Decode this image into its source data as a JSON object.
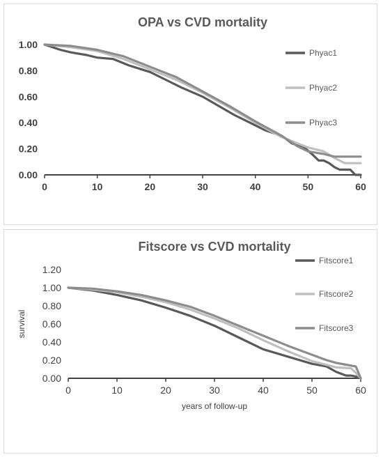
{
  "chart_data": [
    {
      "type": "line",
      "title": "OPA vs CVD mortality",
      "xlabel": "",
      "ylabel": "",
      "xlim": [
        0,
        60
      ],
      "ylim": [
        0,
        1
      ],
      "xticks": [
        "0",
        "10",
        "20",
        "30",
        "40",
        "50",
        "60"
      ],
      "yticks": [
        "0.00",
        "0.20",
        "0.40",
        "0.60",
        "0.80",
        "1.00"
      ],
      "grid": false,
      "legend_position": "right",
      "series": [
        {
          "name": "Phyac1",
          "color": "#595959",
          "x": [
            0,
            3,
            5,
            8,
            10,
            13,
            16,
            20,
            23,
            26,
            30,
            33,
            36,
            39,
            42,
            45,
            47,
            49,
            51,
            52,
            53,
            54,
            55,
            56,
            57,
            58,
            59,
            60
          ],
          "y": [
            1.0,
            0.96,
            0.94,
            0.92,
            0.9,
            0.89,
            0.84,
            0.79,
            0.73,
            0.67,
            0.6,
            0.53,
            0.46,
            0.4,
            0.34,
            0.3,
            0.24,
            0.22,
            0.15,
            0.11,
            0.11,
            0.09,
            0.06,
            0.04,
            0.04,
            0.04,
            0.0,
            0.0
          ]
        },
        {
          "name": "Phyac2",
          "color": "#bfbfbf",
          "x": [
            0,
            5,
            10,
            15,
            20,
            25,
            30,
            35,
            40,
            45,
            50,
            53,
            55,
            57,
            60
          ],
          "y": [
            1.0,
            0.98,
            0.95,
            0.89,
            0.81,
            0.73,
            0.63,
            0.52,
            0.4,
            0.29,
            0.21,
            0.18,
            0.13,
            0.09,
            0.09
          ]
        },
        {
          "name": "Phyac3",
          "color": "#8c8c8c",
          "x": [
            0,
            5,
            10,
            15,
            20,
            25,
            30,
            35,
            40,
            45,
            48,
            50,
            53,
            55,
            60
          ],
          "y": [
            1.0,
            0.99,
            0.96,
            0.91,
            0.83,
            0.75,
            0.64,
            0.53,
            0.41,
            0.3,
            0.22,
            0.18,
            0.16,
            0.14,
            0.14
          ]
        }
      ]
    },
    {
      "type": "line",
      "title": "Fitscore vs CVD mortality",
      "xlabel": "years of follow-up",
      "ylabel": "survival",
      "xlim": [
        0,
        60
      ],
      "ylim": [
        0,
        1.2
      ],
      "xticks": [
        "0",
        "10",
        "20",
        "30",
        "40",
        "50",
        "60"
      ],
      "yticks": [
        "0.00",
        "0.20",
        "0.40",
        "0.60",
        "0.80",
        "1.00",
        "1.20"
      ],
      "grid": false,
      "legend_position": "right",
      "series": [
        {
          "name": "Fitscore1",
          "color": "#595959",
          "x": [
            0,
            5,
            10,
            15,
            20,
            25,
            30,
            35,
            40,
            45,
            50,
            53,
            55,
            57,
            58,
            59,
            60
          ],
          "y": [
            1.0,
            0.97,
            0.92,
            0.86,
            0.78,
            0.69,
            0.58,
            0.45,
            0.32,
            0.24,
            0.16,
            0.13,
            0.07,
            0.03,
            0.03,
            0.02,
            0.0
          ]
        },
        {
          "name": "Fitscore2",
          "color": "#bfbfbf",
          "x": [
            0,
            5,
            10,
            15,
            20,
            25,
            30,
            35,
            40,
            45,
            50,
            55,
            58,
            59,
            60
          ],
          "y": [
            1.0,
            0.98,
            0.95,
            0.9,
            0.84,
            0.76,
            0.66,
            0.55,
            0.42,
            0.3,
            0.19,
            0.12,
            0.11,
            0.06,
            0.0
          ]
        },
        {
          "name": "Fitscore3",
          "color": "#8c8c8c",
          "x": [
            0,
            5,
            10,
            15,
            20,
            25,
            30,
            35,
            40,
            45,
            50,
            53,
            55,
            57,
            59,
            60
          ],
          "y": [
            1.0,
            0.99,
            0.96,
            0.92,
            0.86,
            0.79,
            0.69,
            0.58,
            0.47,
            0.36,
            0.26,
            0.2,
            0.17,
            0.15,
            0.13,
            0.0
          ]
        }
      ]
    }
  ]
}
